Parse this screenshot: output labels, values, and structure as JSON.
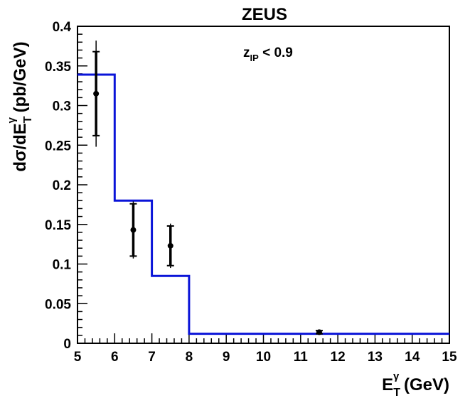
{
  "chart_data": {
    "type": "scatter",
    "title": "ZEUS",
    "annotation": {
      "main": "z",
      "sub": "IP",
      "rest": " < 0.9"
    },
    "xlabel": {
      "main": "E",
      "sub": "T",
      "sup": "γ",
      "rest": " (GeV)"
    },
    "ylabel": {
      "prefix": "dσ/dE",
      "sub": "T",
      "sup": "γ",
      "rest": " (pb/GeV)"
    },
    "xlim": [
      5,
      15
    ],
    "ylim": [
      0,
      0.4
    ],
    "x_ticks": [
      5,
      6,
      7,
      8,
      9,
      10,
      11,
      12,
      13,
      14,
      15
    ],
    "y_ticks": [
      0,
      0.05,
      0.1,
      0.15,
      0.2,
      0.25,
      0.3,
      0.35,
      0.4
    ],
    "x_tick_labels": [
      "5",
      "6",
      "7",
      "8",
      "9",
      "10",
      "11",
      "12",
      "13",
      "14",
      "15"
    ],
    "y_tick_labels": [
      "0",
      "0.05",
      "0.1",
      "0.15",
      "0.2",
      "0.25",
      "0.3",
      "0.35",
      "0.4"
    ],
    "grid": false,
    "series": [
      {
        "kind": "points",
        "color": "#000000",
        "points": [
          {
            "x": 5.5,
            "y": 0.315,
            "err_stat": 0.053,
            "err_tot": 0.067
          },
          {
            "x": 6.5,
            "y": 0.143,
            "err_stat": 0.033,
            "err_tot": 0.036
          },
          {
            "x": 7.5,
            "y": 0.123,
            "err_stat": 0.025,
            "err_tot": 0.028
          },
          {
            "x": 11.5,
            "y": 0.014,
            "err_stat": 0.002,
            "err_tot": 0.003
          }
        ]
      },
      {
        "kind": "histogram",
        "color": "#0a14d8",
        "bins": [
          {
            "x0": 5,
            "x1": 6,
            "y": 0.339
          },
          {
            "x0": 6,
            "x1": 7,
            "y": 0.18
          },
          {
            "x0": 7,
            "x1": 8,
            "y": 0.085
          },
          {
            "x0": 8,
            "x1": 15,
            "y": 0.012
          }
        ]
      }
    ]
  }
}
